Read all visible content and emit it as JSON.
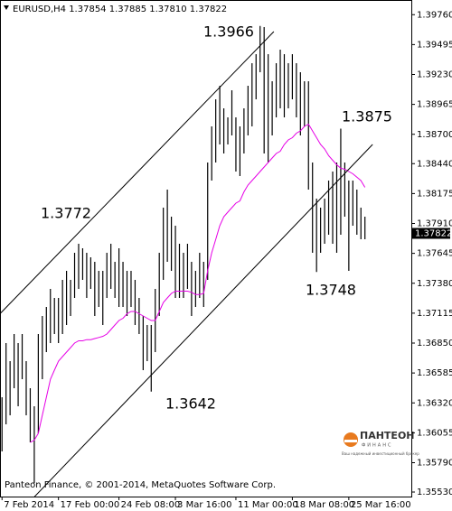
{
  "chart_data": {
    "type": "ohlc",
    "header": "EURUSD,H4  1.37854 1.37885 1.37810 1.37822",
    "footer": "Panteon Finance, © 2001-2014, MetaQuotes Software Corp.",
    "logo": {
      "name": "ПАНТЕОН",
      "sub": "ФИНАНС",
      "tagline": "Ваш надежный инвестиционный брокер"
    },
    "bar_color": "#000000",
    "ma_color": "#e600e6",
    "xlim": [
      -0.5,
      101.5
    ],
    "xticks": [
      {
        "value": 0,
        "label": "7 Feb 2014"
      },
      {
        "value": 14,
        "label": "17 Feb 00:00"
      },
      {
        "value": 29,
        "label": "24 Feb 08:00"
      },
      {
        "value": 43,
        "label": "3 Mar 16:00"
      },
      {
        "value": 58,
        "label": "11 Mar 00:00"
      },
      {
        "value": 72,
        "label": "18 Mar 08:00"
      },
      {
        "value": 86,
        "label": "25 Mar 16:00"
      }
    ],
    "ylim": [
      1.3549,
      1.3989
    ],
    "yticks": [
      {
        "value": 1.3976,
        "label": "1.39760"
      },
      {
        "value": 1.39495,
        "label": "1.39495"
      },
      {
        "value": 1.3923,
        "label": "1.39230"
      },
      {
        "value": 1.38965,
        "label": "1.38965"
      },
      {
        "value": 1.387,
        "label": "1.38700"
      },
      {
        "value": 1.3844,
        "label": "1.38440"
      },
      {
        "value": 1.38175,
        "label": "1.38175"
      },
      {
        "value": 1.3791,
        "label": "1.37910"
      },
      {
        "value": 1.37645,
        "label": "1.37645"
      },
      {
        "value": 1.3738,
        "label": "1.37380"
      },
      {
        "value": 1.37115,
        "label": "1.37115"
      },
      {
        "value": 1.3685,
        "label": "1.36850"
      },
      {
        "value": 1.36585,
        "label": "1.36585"
      },
      {
        "value": 1.3632,
        "label": "1.36320"
      },
      {
        "value": 1.36055,
        "label": "1.36055"
      },
      {
        "value": 1.3579,
        "label": "1.35790"
      },
      {
        "value": 1.3553,
        "label": "1.35530"
      }
    ],
    "last_price": {
      "value": 1.37822,
      "label": "1.37822"
    },
    "high": [
      1.3637,
      1.3685,
      1.3669,
      1.3693,
      1.3685,
      1.3693,
      1.3669,
      1.3645,
      1.3629,
      1.3693,
      1.3709,
      1.3717,
      1.3733,
      1.3725,
      1.3725,
      1.3741,
      1.3749,
      1.3741,
      1.3765,
      1.3773,
      1.3769,
      1.3765,
      1.3761,
      1.3757,
      1.3749,
      1.3749,
      1.3765,
      1.3773,
      1.3757,
      1.3769,
      1.3757,
      1.3749,
      1.3749,
      1.3741,
      1.3725,
      1.3709,
      1.3701,
      1.3701,
      1.3733,
      1.3765,
      1.3805,
      1.3821,
      1.3797,
      1.3789,
      1.3773,
      1.3765,
      1.3773,
      1.3757,
      1.3749,
      1.3765,
      1.3757,
      1.3845,
      1.3877,
      1.3901,
      1.3913,
      1.3893,
      1.3885,
      1.3909,
      1.3885,
      1.3877,
      1.3893,
      1.3913,
      1.3933,
      1.3941,
      1.3966,
      1.3965,
      1.3941,
      1.3917,
      1.3933,
      1.3945,
      1.3941,
      1.3933,
      1.3941,
      1.3933,
      1.3925,
      1.3917,
      1.3917,
      1.3845,
      1.3813,
      1.3805,
      1.3813,
      1.3829,
      1.3837,
      1.3845,
      1.3875,
      1.3845,
      1.3829,
      1.3829,
      1.3821,
      1.3805,
      1.3797
    ],
    "low": [
      1.3589,
      1.3613,
      1.3621,
      1.3645,
      1.3629,
      1.3653,
      1.3621,
      1.3597,
      1.3561,
      1.3605,
      1.3653,
      1.3677,
      1.3685,
      1.3693,
      1.3685,
      1.3693,
      1.3701,
      1.3709,
      1.3725,
      1.3733,
      1.3741,
      1.3725,
      1.3733,
      1.3709,
      1.3717,
      1.3701,
      1.3725,
      1.3733,
      1.3725,
      1.3717,
      1.3717,
      1.3709,
      1.3717,
      1.3701,
      1.3693,
      1.3661,
      1.3669,
      1.3642,
      1.3677,
      1.3709,
      1.3741,
      1.3757,
      1.3749,
      1.3725,
      1.3725,
      1.3725,
      1.3733,
      1.3709,
      1.3717,
      1.3725,
      1.3717,
      1.3741,
      1.3829,
      1.3845,
      1.3861,
      1.3853,
      1.3861,
      1.3869,
      1.3837,
      1.3833,
      1.3853,
      1.3869,
      1.3877,
      1.3901,
      1.3925,
      1.3853,
      1.3845,
      1.3869,
      1.3885,
      1.3893,
      1.3885,
      1.3893,
      1.3901,
      1.3885,
      1.3869,
      1.3877,
      1.3821,
      1.3765,
      1.3748,
      1.3765,
      1.3773,
      1.3781,
      1.3773,
      1.3765,
      1.3781,
      1.3797,
      1.3749,
      1.3789,
      1.3781,
      1.3777,
      1.3777
    ],
    "ma": [
      null,
      null,
      null,
      null,
      null,
      null,
      null,
      1.3597,
      1.3599,
      1.3605,
      1.3621,
      1.3637,
      1.3653,
      1.3661,
      1.3669,
      1.3673,
      1.3677,
      1.3681,
      1.3685,
      1.3687,
      1.3687,
      1.3688,
      1.3688,
      1.3689,
      1.369,
      1.3691,
      1.3693,
      1.3697,
      1.3701,
      1.3705,
      1.3707,
      1.3711,
      1.3713,
      1.3713,
      1.3711,
      1.3709,
      1.3707,
      1.3705,
      1.3705,
      1.3713,
      1.3721,
      1.3725,
      1.3729,
      1.3731,
      1.3731,
      1.3731,
      1.3731,
      1.373,
      1.3728,
      1.3728,
      1.3729,
      1.3749,
      1.3765,
      1.3777,
      1.3789,
      1.3797,
      1.3801,
      1.3805,
      1.3809,
      1.3811,
      1.3819,
      1.3825,
      1.3829,
      1.3833,
      1.3837,
      1.3841,
      1.3845,
      1.3849,
      1.3853,
      1.3855,
      1.3861,
      1.3865,
      1.3867,
      1.3871,
      1.3873,
      1.3877,
      1.3879,
      1.3873,
      1.3867,
      1.3861,
      1.3857,
      1.3851,
      1.3847,
      1.3843,
      1.384,
      1.3839,
      1.3837,
      1.3835,
      1.3832,
      1.3829,
      1.3823
    ],
    "trendlines": [
      {
        "x": [
          -0.5,
          67.4
        ],
        "y": [
          1.3711,
          1.3961
        ]
      },
      {
        "x": [
          -0.5,
          91.9
        ],
        "y": [
          1.3517,
          1.3861
        ]
      }
    ],
    "annotations": [
      1.3966,
      1.3772,
      1.3875,
      1.3748,
      1.3642
    ]
  }
}
